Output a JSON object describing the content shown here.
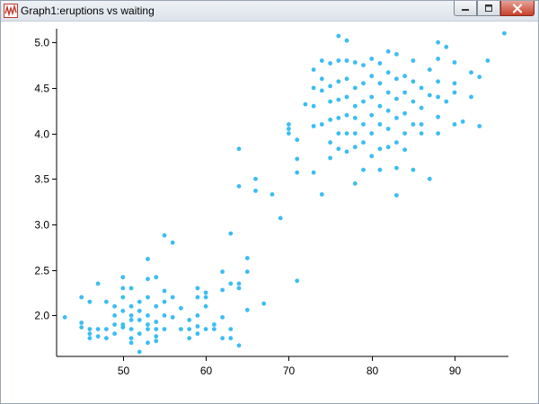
{
  "window": {
    "title": "Graph1:eruptions vs waiting",
    "icons": {
      "app": "graph-app-icon",
      "minimize": "minimize-icon",
      "maximize": "maximize-icon",
      "close": "close-icon"
    }
  },
  "colors": {
    "marker": "#3bbdf2",
    "axis": "#000000",
    "titlebar": "#dde3ea",
    "close": "#c8402b"
  },
  "chart_data": {
    "type": "scatter",
    "title": "",
    "xlabel": "",
    "ylabel": "",
    "xlim": [
      42,
      96.5
    ],
    "ylim": [
      1.55,
      5.15
    ],
    "xticks": [
      50,
      60,
      70,
      80,
      90
    ],
    "yticks": [
      2.0,
      2.5,
      3.0,
      3.5,
      4.0,
      4.5,
      5.0
    ],
    "xtick_labels": [
      "50",
      "60",
      "70",
      "80",
      "90"
    ],
    "ytick_labels": [
      "2.0",
      "2.5",
      "3.0",
      "3.5",
      "4.0",
      "4.5",
      "5.0"
    ],
    "grid": false,
    "legend": "none",
    "points": [
      [
        43,
        1.98
      ],
      [
        45,
        2.2
      ],
      [
        45,
        1.92
      ],
      [
        45,
        1.87
      ],
      [
        46,
        2.15
      ],
      [
        46,
        1.85
      ],
      [
        46,
        1.8
      ],
      [
        46,
        1.75
      ],
      [
        47,
        2.35
      ],
      [
        47,
        1.85
      ],
      [
        47,
        1.77
      ],
      [
        48,
        2.15
      ],
      [
        48,
        1.85
      ],
      [
        48,
        1.75
      ],
      [
        49,
        2.0
      ],
      [
        49,
        2.1
      ],
      [
        49,
        1.9
      ],
      [
        49,
        1.8
      ],
      [
        50,
        2.42
      ],
      [
        50,
        2.3
      ],
      [
        50,
        2.2
      ],
      [
        50,
        2.05
      ],
      [
        50,
        1.9
      ],
      [
        50,
        1.87
      ],
      [
        51,
        2.3
      ],
      [
        51,
        2.1
      ],
      [
        51,
        2.0
      ],
      [
        51,
        1.95
      ],
      [
        51,
        1.85
      ],
      [
        51,
        1.75
      ],
      [
        51,
        1.7
      ],
      [
        52,
        2.15
      ],
      [
        52,
        2.05
      ],
      [
        52,
        1.95
      ],
      [
        52,
        1.8
      ],
      [
        52,
        1.6
      ],
      [
        53,
        2.62
      ],
      [
        53,
        2.4
      ],
      [
        53,
        2.2
      ],
      [
        53,
        2.0
      ],
      [
        53,
        1.9
      ],
      [
        53,
        1.85
      ],
      [
        53,
        1.7
      ],
      [
        54,
        2.42
      ],
      [
        54,
        2.1
      ],
      [
        54,
        1.93
      ],
      [
        54,
        1.85
      ],
      [
        54,
        1.77
      ],
      [
        54,
        1.72
      ],
      [
        55,
        2.88
      ],
      [
        55,
        2.27
      ],
      [
        55,
        2.15
      ],
      [
        55,
        2.0
      ],
      [
        55,
        1.85
      ],
      [
        56,
        2.8
      ],
      [
        56,
        2.2
      ],
      [
        56,
        1.98
      ],
      [
        57,
        2.08
      ],
      [
        57,
        1.85
      ],
      [
        58,
        1.95
      ],
      [
        58,
        1.85
      ],
      [
        58,
        1.75
      ],
      [
        59,
        2.3
      ],
      [
        59,
        2.2
      ],
      [
        59,
        2.0
      ],
      [
        59,
        1.88
      ],
      [
        59,
        1.8
      ],
      [
        60,
        2.25
      ],
      [
        60,
        2.2
      ],
      [
        60,
        2.1
      ],
      [
        60,
        1.85
      ],
      [
        61,
        1.9
      ],
      [
        61,
        1.85
      ],
      [
        62,
        2.48
      ],
      [
        62,
        2.28
      ],
      [
        62,
        1.98
      ],
      [
        62,
        1.75
      ],
      [
        63,
        2.9
      ],
      [
        63,
        2.35
      ],
      [
        63,
        1.85
      ],
      [
        63,
        1.75
      ],
      [
        64,
        2.35
      ],
      [
        64,
        2.3
      ],
      [
        64,
        1.67
      ],
      [
        64,
        3.42
      ],
      [
        64,
        3.83
      ],
      [
        65,
        2.63
      ],
      [
        65,
        2.48
      ],
      [
        65,
        2.06
      ],
      [
        66,
        3.5
      ],
      [
        66,
        3.37
      ],
      [
        67,
        2.13
      ],
      [
        68,
        3.33
      ],
      [
        69,
        3.07
      ],
      [
        70,
        4.1
      ],
      [
        70,
        4.0
      ],
      [
        70,
        4.05
      ],
      [
        71,
        3.57
      ],
      [
        71,
        2.38
      ],
      [
        71,
        3.72
      ],
      [
        71,
        3.93
      ],
      [
        72,
        4.32
      ],
      [
        73,
        4.7
      ],
      [
        73,
        4.5
      ],
      [
        73,
        4.3
      ],
      [
        73,
        3.57
      ],
      [
        73,
        4.08
      ],
      [
        74,
        4.8
      ],
      [
        74,
        4.6
      ],
      [
        74,
        4.47
      ],
      [
        74,
        4.1
      ],
      [
        74,
        3.33
      ],
      [
        75,
        4.77
      ],
      [
        75,
        4.52
      ],
      [
        75,
        4.35
      ],
      [
        75,
        4.15
      ],
      [
        75,
        3.9
      ],
      [
        75,
        3.73
      ],
      [
        76,
        5.07
      ],
      [
        76,
        4.8
      ],
      [
        76,
        4.57
      ],
      [
        76,
        4.37
      ],
      [
        76,
        4.17
      ],
      [
        76,
        4.0
      ],
      [
        76,
        3.83
      ],
      [
        77,
        5.02
      ],
      [
        77,
        4.8
      ],
      [
        77,
        4.6
      ],
      [
        77,
        4.4
      ],
      [
        77,
        4.2
      ],
      [
        77,
        4.0
      ],
      [
        77,
        3.8
      ],
      [
        78,
        4.78
      ],
      [
        78,
        4.5
      ],
      [
        78,
        4.3
      ],
      [
        78,
        4.17
      ],
      [
        78,
        4.0
      ],
      [
        78,
        3.85
      ],
      [
        78,
        3.45
      ],
      [
        79,
        4.75
      ],
      [
        79,
        4.55
      ],
      [
        79,
        4.35
      ],
      [
        79,
        4.1
      ],
      [
        79,
        3.9
      ],
      [
        79,
        3.6
      ],
      [
        80,
        4.82
      ],
      [
        80,
        4.63
      ],
      [
        80,
        4.4
      ],
      [
        80,
        4.2
      ],
      [
        80,
        4.0
      ],
      [
        80,
        3.75
      ],
      [
        81,
        4.77
      ],
      [
        81,
        4.55
      ],
      [
        81,
        4.3
      ],
      [
        81,
        4.1
      ],
      [
        81,
        3.83
      ],
      [
        81,
        3.6
      ],
      [
        82,
        4.9
      ],
      [
        82,
        4.67
      ],
      [
        82,
        4.45
      ],
      [
        82,
        4.25
      ],
      [
        82,
        4.05
      ],
      [
        82,
        3.85
      ],
      [
        83,
        4.87
      ],
      [
        83,
        4.6
      ],
      [
        83,
        4.38
      ],
      [
        83,
        4.17
      ],
      [
        83,
        3.9
      ],
      [
        83,
        3.62
      ],
      [
        83,
        3.32
      ],
      [
        84,
        4.63
      ],
      [
        84,
        4.45
      ],
      [
        84,
        4.22
      ],
      [
        84,
        4.0
      ],
      [
        84,
        3.82
      ],
      [
        85,
        4.8
      ],
      [
        85,
        4.57
      ],
      [
        85,
        4.35
      ],
      [
        85,
        4.1
      ],
      [
        85,
        3.6
      ],
      [
        86,
        4.5
      ],
      [
        86,
        4.28
      ],
      [
        86,
        4.1
      ],
      [
        86,
        4.0
      ],
      [
        87,
        4.7
      ],
      [
        87,
        4.42
      ],
      [
        87,
        3.5
      ],
      [
        88,
        5.0
      ],
      [
        88,
        4.82
      ],
      [
        88,
        4.57
      ],
      [
        88,
        4.4
      ],
      [
        88,
        4.18
      ],
      [
        88,
        4.0
      ],
      [
        89,
        4.95
      ],
      [
        89,
        4.35
      ],
      [
        90,
        4.78
      ],
      [
        90,
        4.55
      ],
      [
        90,
        4.45
      ],
      [
        90,
        4.1
      ],
      [
        91,
        4.13
      ],
      [
        92,
        4.4
      ],
      [
        92,
        4.67
      ],
      [
        93,
        4.62
      ],
      [
        93,
        4.08
      ],
      [
        94,
        4.8
      ],
      [
        96,
        5.1
      ]
    ]
  }
}
